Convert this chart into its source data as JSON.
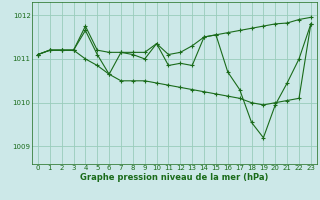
{
  "xlabel": "Graphe pression niveau de la mer (hPa)",
  "bg_color": "#cce8e8",
  "line_color": "#1a6b1a",
  "grid_color": "#99ccbb",
  "xlim": [
    -0.5,
    23.5
  ],
  "ylim": [
    1008.6,
    1012.3
  ],
  "yticks": [
    1009,
    1010,
    1011,
    1012
  ],
  "xticks": [
    0,
    1,
    2,
    3,
    4,
    5,
    6,
    7,
    8,
    9,
    10,
    11,
    12,
    13,
    14,
    15,
    16,
    17,
    18,
    19,
    20,
    21,
    22,
    23
  ],
  "series": [
    [
      1011.1,
      1011.2,
      1011.2,
      1011.2,
      1011.75,
      1011.2,
      1011.15,
      1011.15,
      1011.15,
      1011.15,
      1011.35,
      1011.1,
      1011.15,
      1011.3,
      1011.5,
      1011.55,
      1011.6,
      1011.65,
      1011.7,
      1011.75,
      1011.8,
      1011.82,
      1011.9,
      1011.95
    ],
    [
      1011.1,
      1011.2,
      1011.2,
      1011.2,
      1011.65,
      1011.1,
      1010.65,
      1011.15,
      1011.1,
      1011.0,
      1011.35,
      1010.85,
      1010.9,
      1010.85,
      1011.5,
      1011.55,
      1010.7,
      1010.3,
      1009.55,
      1009.2,
      1009.95,
      1010.45,
      1011.0,
      1011.8
    ],
    [
      1011.1,
      1011.2,
      1011.2,
      1011.2,
      1011.0,
      1010.85,
      1010.65,
      1010.5,
      1010.5,
      1010.5,
      1010.45,
      1010.4,
      1010.35,
      1010.3,
      1010.25,
      1010.2,
      1010.15,
      1010.1,
      1010.0,
      1009.95,
      1010.0,
      1010.05,
      1010.1,
      1011.8
    ]
  ]
}
